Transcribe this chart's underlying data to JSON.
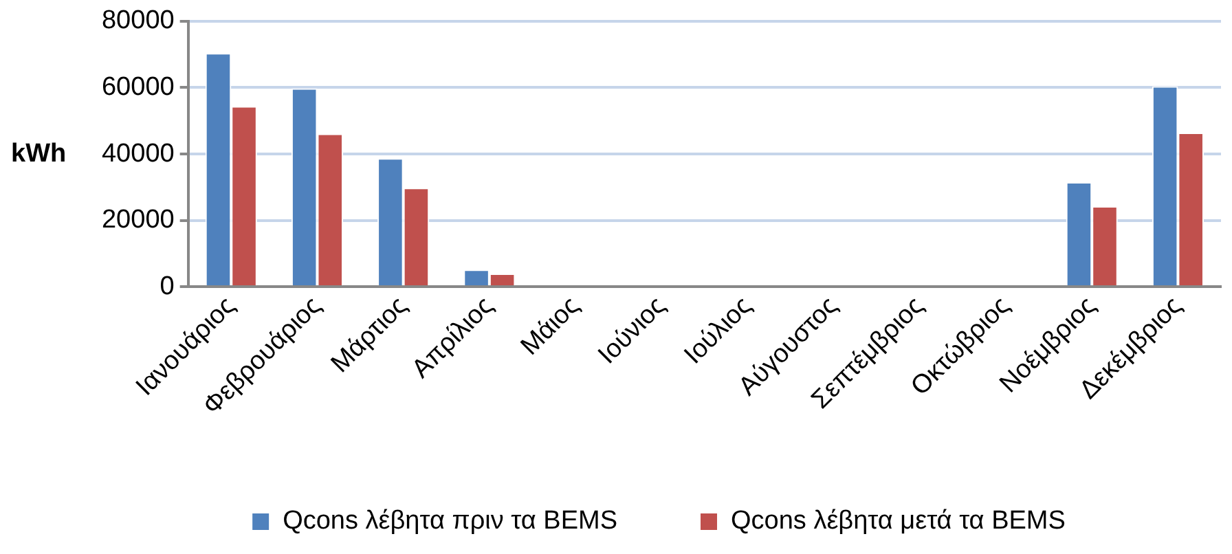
{
  "chart_data": {
    "type": "bar",
    "ylabel": "kWh",
    "categories": [
      "Ιανουάριος",
      "Φεβρουάριος",
      "Μάρτιος",
      "Απρίλιος",
      "Μάιος",
      "Ιούνιος",
      "Ιούλιος",
      "Αύγουστος",
      "Σεπτέμβριος",
      "Οκτώβριος",
      "Νοέμβριος",
      "Δεκέμβριος"
    ],
    "series": [
      {
        "name": "Qcons λέβητα πριν τα BEMS",
        "color": "#4f81bd",
        "values": [
          70400,
          59800,
          38700,
          5200,
          0,
          0,
          0,
          0,
          0,
          0,
          31500,
          60400
        ]
      },
      {
        "name": "Qcons λέβητα μετά τα BEMS",
        "color": "#c0504d",
        "values": [
          54400,
          46100,
          29800,
          4000,
          0,
          0,
          0,
          0,
          0,
          0,
          24300,
          46400
        ]
      }
    ],
    "ylim": [
      0,
      80000
    ],
    "yticks": [
      0,
      20000,
      40000,
      60000,
      80000
    ],
    "grid": "y",
    "legend": "bottom"
  }
}
